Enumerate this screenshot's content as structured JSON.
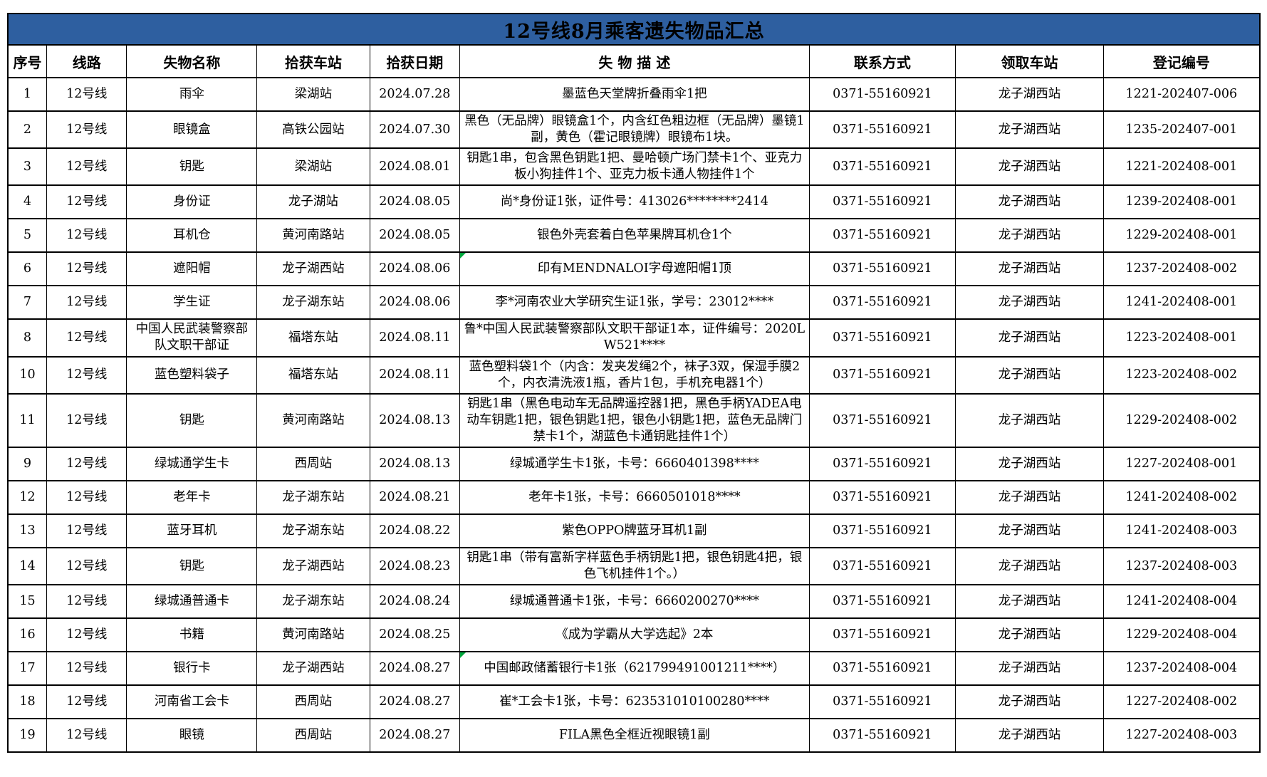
{
  "title": "12号线8月乘客遗失物品汇总",
  "colors": {
    "title_bg": "#2e5fa0",
    "border": "#000000",
    "comment_marker": "#00a63c"
  },
  "columns": [
    {
      "key": "seq",
      "label": "序号"
    },
    {
      "key": "line",
      "label": "线路"
    },
    {
      "key": "item",
      "label": "失物名称"
    },
    {
      "key": "found_station",
      "label": "拾获车站"
    },
    {
      "key": "found_date",
      "label": "拾获日期"
    },
    {
      "key": "description",
      "label": "失 物 描 述"
    },
    {
      "key": "contact",
      "label": "联系方式"
    },
    {
      "key": "pickup_station",
      "label": "领取车站"
    },
    {
      "key": "reg_no",
      "label": "登记编号"
    }
  ],
  "rows": [
    {
      "seq": "1",
      "line": "12号线",
      "item": "雨伞",
      "found_station": "梁湖站",
      "found_date": "2024.07.28",
      "description": "墨蓝色天堂牌折叠雨伞1把",
      "contact": "0371-55160921",
      "pickup_station": "龙子湖西站",
      "reg_no": "1221-202407-006",
      "comment_marker": false
    },
    {
      "seq": "2",
      "line": "12号线",
      "item": "眼镜盒",
      "found_station": "高铁公园站",
      "found_date": "2024.07.30",
      "description": "黑色（无品牌）眼镜盒1个，内含红色粗边框（无品牌）墨镜1副，黄色（霍记眼镜牌）眼镜布1块。",
      "contact": "0371-55160921",
      "pickup_station": "龙子湖西站",
      "reg_no": "1235-202407-001",
      "comment_marker": false
    },
    {
      "seq": "3",
      "line": "12号线",
      "item": "钥匙",
      "found_station": "梁湖站",
      "found_date": "2024.08.01",
      "description": "钥匙1串，包含黑色钥匙1把、曼哈顿广场门禁卡1个、亚克力板小狗挂件1个、亚克力板卡通人物挂件1个",
      "contact": "0371-55160921",
      "pickup_station": "龙子湖西站",
      "reg_no": "1221-202408-001",
      "comment_marker": false
    },
    {
      "seq": "4",
      "line": "12号线",
      "item": "身份证",
      "found_station": "龙子湖站",
      "found_date": "2024.08.05",
      "description": "尚*身份证1张，证件号：413026********2414",
      "contact": "0371-55160921",
      "pickup_station": "龙子湖西站",
      "reg_no": "1239-202408-001",
      "comment_marker": false
    },
    {
      "seq": "5",
      "line": "12号线",
      "item": "耳机仓",
      "found_station": "黄河南路站",
      "found_date": "2024.08.05",
      "description": "银色外壳套着白色苹果牌耳机仓1个",
      "contact": "0371-55160921",
      "pickup_station": "龙子湖西站",
      "reg_no": "1229-202408-001",
      "comment_marker": false
    },
    {
      "seq": "6",
      "line": "12号线",
      "item": "遮阳帽",
      "found_station": "龙子湖西站",
      "found_date": "2024.08.06",
      "description": "印有MENDNALOI字母遮阳帽1顶",
      "contact": "0371-55160921",
      "pickup_station": "龙子湖西站",
      "reg_no": "1237-202408-002",
      "comment_marker": true
    },
    {
      "seq": "7",
      "line": "12号线",
      "item": "学生证",
      "found_station": "龙子湖东站",
      "found_date": "2024.08.06",
      "description": "李*河南农业大学研究生证1张，学号：23012****",
      "contact": "0371-55160921",
      "pickup_station": "龙子湖西站",
      "reg_no": "1241-202408-001",
      "comment_marker": false
    },
    {
      "seq": "8",
      "line": "12号线",
      "item": "中国人民武装警察部队文职干部证",
      "found_station": "福塔东站",
      "found_date": "2024.08.11",
      "description": "鲁*中国人民武装警察部队文职干部证1本，证件编号：2020LW521****",
      "contact": "0371-55160921",
      "pickup_station": "龙子湖西站",
      "reg_no": "1223-202408-001",
      "comment_marker": false
    },
    {
      "seq": "10",
      "line": "12号线",
      "item": "蓝色塑料袋子",
      "found_station": "福塔东站",
      "found_date": "2024.08.11",
      "description": "蓝色塑料袋1个（内含：发夹发绳2个，袜子3双，保湿手膜2个，内衣清洗液1瓶，香片1包，手机充电器1个）",
      "contact": "0371-55160921",
      "pickup_station": "龙子湖西站",
      "reg_no": "1223-202408-002",
      "comment_marker": false
    },
    {
      "seq": "11",
      "line": "12号线",
      "item": "钥匙",
      "found_station": "黄河南路站",
      "found_date": "2024.08.13",
      "description": "钥匙1串（黑色电动车无品牌遥控器1把，黑色手柄YADEA电动车钥匙1把，银色钥匙1把，银色小钥匙1把，蓝色无品牌门禁卡1个，湖蓝色卡通钥匙挂件1个）",
      "contact": "0371-55160921",
      "pickup_station": "龙子湖西站",
      "reg_no": "1229-202408-002",
      "comment_marker": false
    },
    {
      "seq": "9",
      "line": "12号线",
      "item": "绿城通学生卡",
      "found_station": "西周站",
      "found_date": "2024.08.13",
      "description": "绿城通学生卡1张，卡号：6660401398****",
      "contact": "0371-55160921",
      "pickup_station": "龙子湖西站",
      "reg_no": "1227-202408-001",
      "comment_marker": false
    },
    {
      "seq": "12",
      "line": "12号线",
      "item": "老年卡",
      "found_station": "龙子湖东站",
      "found_date": "2024.08.21",
      "description": "老年卡1张，卡号：6660501018****",
      "contact": "0371-55160921",
      "pickup_station": "龙子湖西站",
      "reg_no": "1241-202408-002",
      "comment_marker": false
    },
    {
      "seq": "13",
      "line": "12号线",
      "item": "蓝牙耳机",
      "found_station": "龙子湖东站",
      "found_date": "2024.08.22",
      "description": "紫色OPPO牌蓝牙耳机1副",
      "contact": "0371-55160921",
      "pickup_station": "龙子湖西站",
      "reg_no": "1241-202408-003",
      "comment_marker": false
    },
    {
      "seq": "14",
      "line": "12号线",
      "item": "钥匙",
      "found_station": "龙子湖西站",
      "found_date": "2024.08.23",
      "description": "钥匙1串（带有富新字样蓝色手柄钥匙1把，银色钥匙4把，银色飞机挂件1个。）",
      "contact": "0371-55160921",
      "pickup_station": "龙子湖西站",
      "reg_no": "1237-202408-003",
      "comment_marker": false
    },
    {
      "seq": "15",
      "line": "12号线",
      "item": "绿城通普通卡",
      "found_station": "龙子湖东站",
      "found_date": "2024.08.24",
      "description": "绿城通普通卡1张，卡号：6660200270****",
      "contact": "0371-55160921",
      "pickup_station": "龙子湖西站",
      "reg_no": "1241-202408-004",
      "comment_marker": false
    },
    {
      "seq": "16",
      "line": "12号线",
      "item": "书籍",
      "found_station": "黄河南路站",
      "found_date": "2024.08.25",
      "description": "《成为学霸从大学选起》2本",
      "contact": "0371-55160921",
      "pickup_station": "龙子湖西站",
      "reg_no": "1229-202408-004",
      "comment_marker": false
    },
    {
      "seq": "17",
      "line": "12号线",
      "item": "银行卡",
      "found_station": "龙子湖西站",
      "found_date": "2024.08.27",
      "description": "中国邮政储蓄银行卡1张（621799491001211****）",
      "contact": "0371-55160921",
      "pickup_station": "龙子湖西站",
      "reg_no": "1237-202408-004",
      "comment_marker": true
    },
    {
      "seq": "18",
      "line": "12号线",
      "item": "河南省工会卡",
      "found_station": "西周站",
      "found_date": "2024.08.27",
      "description": "崔*工会卡1张，卡号：623531010100280****",
      "contact": "0371-55160921",
      "pickup_station": "龙子湖西站",
      "reg_no": "1227-202408-002",
      "comment_marker": false
    },
    {
      "seq": "19",
      "line": "12号线",
      "item": "眼镜",
      "found_station": "西周站",
      "found_date": "2024.08.27",
      "description": "FILA黑色全框近视眼镜1副",
      "contact": "0371-55160921",
      "pickup_station": "龙子湖西站",
      "reg_no": "1227-202408-003",
      "comment_marker": false
    }
  ]
}
